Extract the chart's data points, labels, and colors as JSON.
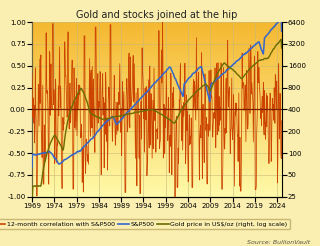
{
  "title": "Gold and stocks joined at the hip",
  "source": "Source: BullionVault",
  "background_color": "#FAEEB0",
  "plot_bg_gradient_top": "#F5A623",
  "plot_bg_gradient_bottom": "#FFFACD",
  "left_ylim": [
    -1.0,
    1.0
  ],
  "left_yticks": [
    -1.0,
    -0.75,
    -0.5,
    -0.25,
    0.0,
    0.25,
    0.5,
    0.75,
    1.0
  ],
  "right_yticks_log": [
    25,
    50,
    100,
    200,
    400,
    800,
    1600,
    3200,
    6400
  ],
  "xticks": [
    1969,
    1974,
    1979,
    1984,
    1989,
    1994,
    1999,
    2004,
    2009,
    2014,
    2019,
    2024
  ],
  "corr_color": "#CC4400",
  "sp500_color": "#3366CC",
  "gold_color": "#6B6B00",
  "zeroline_color": "#7B2000",
  "grid_color": "#C8B878",
  "legend_labels": [
    "12-month correlation with S&P500",
    "S&P500",
    "Gold price in US$/oz (right, log scale)"
  ],
  "title_fontsize": 7.0,
  "tick_fontsize": 5.0,
  "legend_fontsize": 4.5,
  "source_fontsize": 4.5,
  "log_min": 3.218876,
  "log_max": 8.764186
}
